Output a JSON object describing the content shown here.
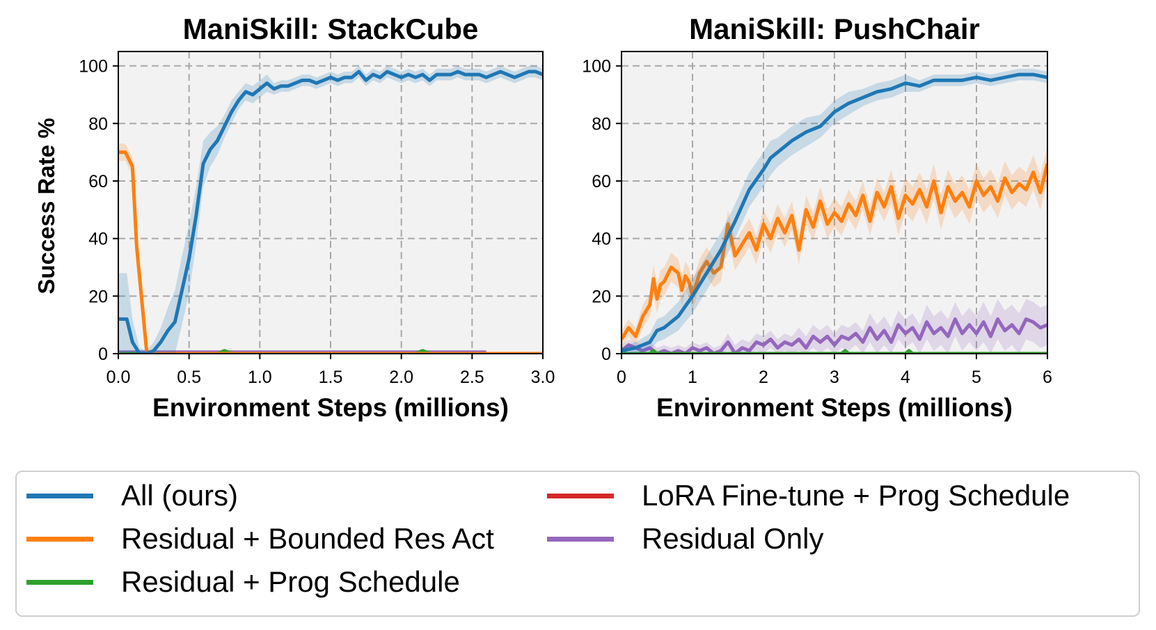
{
  "figure": {
    "ylabel": "Success Rate %"
  },
  "legend": [
    {
      "key": "all",
      "label": "All (ours)",
      "color": "#1f77b4"
    },
    {
      "key": "bounded",
      "label": "Residual + Bounded Res Act",
      "color": "#ff7f0e"
    },
    {
      "key": "prog",
      "label": "Residual + Prog Schedule",
      "color": "#2ca02c"
    },
    {
      "key": "lora",
      "label": "LoRA Fine-tune + Prog Schedule",
      "color": "#d62728"
    },
    {
      "key": "resonly",
      "label": "Residual Only",
      "color": "#9467bd"
    }
  ],
  "chart_data": [
    {
      "type": "line",
      "title": "ManiSkill: StackCube",
      "xlabel": "Environment Steps (millions)",
      "ylabel": "Success Rate %",
      "xlim": [
        0,
        3
      ],
      "ylim": [
        0,
        105
      ],
      "xticks": [
        0,
        0.5,
        1,
        1.5,
        2,
        2.5,
        3
      ],
      "xtick_labels": [
        "0.0",
        "0.5",
        "1.0",
        "1.5",
        "2.0",
        "2.5",
        "3.0"
      ],
      "yticks": [
        0,
        20,
        40,
        60,
        80,
        100
      ],
      "ytick_labels": [
        "0",
        "20",
        "40",
        "60",
        "80",
        "100"
      ],
      "grid": true,
      "series": [
        {
          "name": "All (ours)",
          "color": "#1f77b4",
          "x": [
            0,
            0.06,
            0.1,
            0.15,
            0.2,
            0.25,
            0.3,
            0.35,
            0.4,
            0.45,
            0.5,
            0.55,
            0.6,
            0.65,
            0.7,
            0.75,
            0.8,
            0.85,
            0.9,
            0.95,
            1.0,
            1.05,
            1.1,
            1.15,
            1.2,
            1.25,
            1.3,
            1.35,
            1.4,
            1.45,
            1.5,
            1.55,
            1.6,
            1.65,
            1.7,
            1.75,
            1.8,
            1.85,
            1.9,
            1.95,
            2.0,
            2.05,
            2.1,
            2.15,
            2.2,
            2.25,
            2.3,
            2.35,
            2.4,
            2.45,
            2.5,
            2.55,
            2.6,
            2.65,
            2.7,
            2.75,
            2.8,
            2.85,
            2.9,
            2.95,
            3.0
          ],
          "y": [
            12,
            12,
            4,
            0,
            0,
            1,
            4,
            8,
            11,
            22,
            33,
            48,
            66,
            71,
            74,
            79,
            84,
            88,
            91,
            90,
            92,
            94,
            92,
            93,
            93,
            94,
            95,
            95,
            94,
            95,
            96,
            95,
            96,
            96,
            98,
            95,
            97,
            96,
            98,
            97,
            96,
            97,
            96,
            97,
            95,
            97,
            97,
            97,
            98,
            97,
            97,
            97,
            96,
            97,
            98,
            97,
            96,
            97,
            98,
            98,
            97
          ],
          "band": [
            16,
            16,
            8,
            2,
            1,
            3,
            5,
            8,
            11,
            12,
            12,
            10,
            8,
            6,
            5,
            4,
            4,
            3,
            3,
            3,
            3,
            3,
            2,
            2,
            2,
            2,
            2,
            2,
            2,
            2,
            2,
            2,
            2,
            2,
            2,
            2,
            2,
            2,
            2,
            2,
            2,
            2,
            2,
            2,
            2,
            2,
            2,
            2,
            2,
            2,
            2,
            2,
            2,
            2,
            2,
            2,
            2,
            2,
            2,
            2,
            2
          ]
        },
        {
          "name": "Residual + Bounded Res Act",
          "color": "#ff7f0e",
          "x": [
            0,
            0.05,
            0.1,
            0.13,
            0.2,
            0.22,
            3.0
          ],
          "y": [
            70,
            70,
            65,
            37,
            1,
            0,
            0
          ],
          "band": [
            3,
            3,
            3,
            3,
            1,
            0,
            0
          ]
        },
        {
          "name": "Residual + Prog Schedule",
          "color": "#2ca02c",
          "x": [
            0,
            0.7,
            0.75,
            0.8,
            2.1,
            2.15,
            2.2,
            3.0
          ],
          "y": [
            0,
            0,
            1,
            0,
            0,
            1,
            0,
            0
          ],
          "band": [
            0,
            0,
            0,
            0,
            0,
            0,
            0,
            0
          ]
        },
        {
          "name": "LoRA Fine-tune + Prog Schedule",
          "color": "#d62728",
          "x": [
            0,
            3.0
          ],
          "y": [
            0,
            0
          ],
          "band": [
            0,
            0
          ]
        },
        {
          "name": "Residual Only",
          "color": "#9467bd",
          "x": [
            0,
            2.6
          ],
          "y": [
            0.5,
            0.5
          ],
          "band": [
            0,
            0
          ]
        }
      ]
    },
    {
      "type": "line",
      "title": "ManiSkill: PushChair",
      "xlabel": "Environment Steps (millions)",
      "ylabel": "",
      "xlim": [
        0,
        6
      ],
      "ylim": [
        0,
        105
      ],
      "xticks": [
        0,
        1,
        2,
        3,
        4,
        5,
        6
      ],
      "xtick_labels": [
        "0",
        "1",
        "2",
        "3",
        "4",
        "5",
        "6"
      ],
      "yticks": [
        0,
        20,
        40,
        60,
        80,
        100
      ],
      "ytick_labels": [
        "0",
        "20",
        "40",
        "60",
        "80",
        "100"
      ],
      "grid": true,
      "series": [
        {
          "name": "All (ours)",
          "color": "#1f77b4",
          "x": [
            0,
            0.2,
            0.4,
            0.5,
            0.6,
            0.8,
            1.0,
            1.2,
            1.4,
            1.6,
            1.8,
            2.0,
            2.1,
            2.2,
            2.4,
            2.6,
            2.8,
            3.0,
            3.2,
            3.4,
            3.6,
            3.8,
            4.0,
            4.2,
            4.4,
            4.6,
            4.8,
            5.0,
            5.2,
            5.4,
            5.6,
            5.8,
            6.0
          ],
          "y": [
            1,
            2,
            4,
            8,
            9,
            13,
            20,
            28,
            36,
            46,
            57,
            64,
            68,
            70,
            74,
            77,
            79,
            84,
            87,
            89,
            91,
            92,
            94,
            93,
            95,
            95,
            95,
            96,
            95,
            96,
            97,
            97,
            96
          ],
          "band": [
            1,
            2,
            3,
            4,
            4,
            5,
            6,
            6,
            6,
            6,
            6,
            6,
            6,
            5,
            5,
            5,
            4,
            4,
            4,
            3,
            3,
            3,
            3,
            2,
            2,
            2,
            2,
            2,
            2,
            2,
            2,
            2,
            2
          ]
        },
        {
          "name": "Residual + Bounded Res Act",
          "color": "#ff7f0e",
          "x": [
            0,
            0.1,
            0.2,
            0.3,
            0.4,
            0.45,
            0.5,
            0.55,
            0.6,
            0.7,
            0.8,
            0.85,
            0.9,
            0.95,
            1.0,
            1.1,
            1.2,
            1.3,
            1.4,
            1.5,
            1.6,
            1.7,
            1.8,
            1.9,
            2.0,
            2.1,
            2.2,
            2.3,
            2.4,
            2.5,
            2.6,
            2.7,
            2.8,
            2.9,
            3.0,
            3.1,
            3.2,
            3.3,
            3.4,
            3.5,
            3.6,
            3.7,
            3.8,
            3.9,
            4.0,
            4.1,
            4.2,
            4.3,
            4.4,
            4.5,
            4.6,
            4.7,
            4.8,
            4.9,
            5.0,
            5.1,
            5.2,
            5.3,
            5.4,
            5.5,
            5.6,
            5.7,
            5.8,
            5.9,
            6.0
          ],
          "y": [
            5,
            9,
            6,
            13,
            17,
            26,
            19,
            24,
            25,
            30,
            28,
            22,
            27,
            25,
            20,
            28,
            32,
            28,
            30,
            45,
            34,
            38,
            42,
            36,
            45,
            40,
            47,
            42,
            48,
            36,
            50,
            44,
            53,
            45,
            49,
            46,
            52,
            48,
            55,
            46,
            56,
            51,
            58,
            47,
            55,
            52,
            57,
            51,
            60,
            49,
            58,
            53,
            56,
            51,
            60,
            55,
            58,
            53,
            61,
            56,
            59,
            57,
            63,
            56,
            66
          ],
          "band": [
            3,
            3,
            3,
            4,
            4,
            5,
            5,
            5,
            5,
            5,
            5,
            5,
            5,
            5,
            5,
            5,
            5,
            5,
            5,
            5,
            5,
            5,
            5,
            5,
            5,
            5,
            5,
            5,
            5,
            5,
            5,
            5,
            5,
            5,
            5,
            5,
            5,
            5,
            5,
            5,
            5,
            5,
            6,
            6,
            6,
            6,
            6,
            6,
            6,
            6,
            6,
            6,
            6,
            6,
            6,
            6,
            6,
            6,
            6,
            6,
            6,
            6,
            6,
            6,
            6
          ]
        },
        {
          "name": "Residual + Prog Schedule",
          "color": "#2ca02c",
          "x": [
            0,
            0.4,
            0.45,
            0.5,
            3.1,
            3.15,
            3.2,
            4.0,
            4.05,
            4.1,
            6.0
          ],
          "y": [
            0,
            0,
            1,
            0,
            0,
            1,
            0,
            0,
            1,
            0,
            0
          ],
          "band": [
            0,
            0,
            0,
            0,
            0,
            0,
            0,
            0,
            0,
            0,
            0
          ]
        },
        {
          "name": "LoRA Fine-tune + Prog Schedule",
          "color": "#d62728",
          "x": [
            0,
            6.0
          ],
          "y": [
            0,
            0
          ],
          "band": [
            0,
            0
          ]
        },
        {
          "name": "Residual Only",
          "color": "#9467bd",
          "x": [
            0,
            0.1,
            0.2,
            0.3,
            0.4,
            0.5,
            0.6,
            0.7,
            0.8,
            0.9,
            1.0,
            1.1,
            1.2,
            1.3,
            1.4,
            1.5,
            1.6,
            1.7,
            1.8,
            1.9,
            2.0,
            2.1,
            2.2,
            2.3,
            2.4,
            2.5,
            2.6,
            2.7,
            2.8,
            2.9,
            3.0,
            3.1,
            3.2,
            3.3,
            3.4,
            3.5,
            3.6,
            3.7,
            3.8,
            3.9,
            4.0,
            4.1,
            4.2,
            4.3,
            4.4,
            4.5,
            4.6,
            4.7,
            4.8,
            4.9,
            5.0,
            5.1,
            5.2,
            5.3,
            5.4,
            5.5,
            5.6,
            5.7,
            5.8,
            5.9,
            6.0
          ],
          "y": [
            1,
            3,
            2,
            1,
            2,
            0,
            1,
            0,
            1,
            0,
            2,
            1,
            2,
            0,
            1,
            4,
            0,
            2,
            1,
            4,
            3,
            5,
            2,
            4,
            3,
            5,
            2,
            6,
            4,
            6,
            3,
            6,
            5,
            7,
            4,
            9,
            5,
            8,
            4,
            10,
            7,
            9,
            5,
            11,
            7,
            9,
            6,
            12,
            7,
            10,
            7,
            11,
            6,
            12,
            8,
            10,
            7,
            12,
            11,
            9,
            10
          ],
          "band": [
            2,
            2,
            2,
            2,
            2,
            2,
            2,
            2,
            2,
            2,
            2,
            2,
            2,
            2,
            2,
            3,
            3,
            3,
            3,
            3,
            3,
            3,
            3,
            3,
            3,
            4,
            4,
            4,
            4,
            4,
            4,
            4,
            4,
            4,
            4,
            5,
            5,
            5,
            5,
            5,
            5,
            5,
            5,
            6,
            6,
            6,
            6,
            6,
            6,
            6,
            6,
            7,
            7,
            7,
            7,
            7,
            7,
            7,
            7,
            7,
            7
          ]
        }
      ]
    }
  ]
}
